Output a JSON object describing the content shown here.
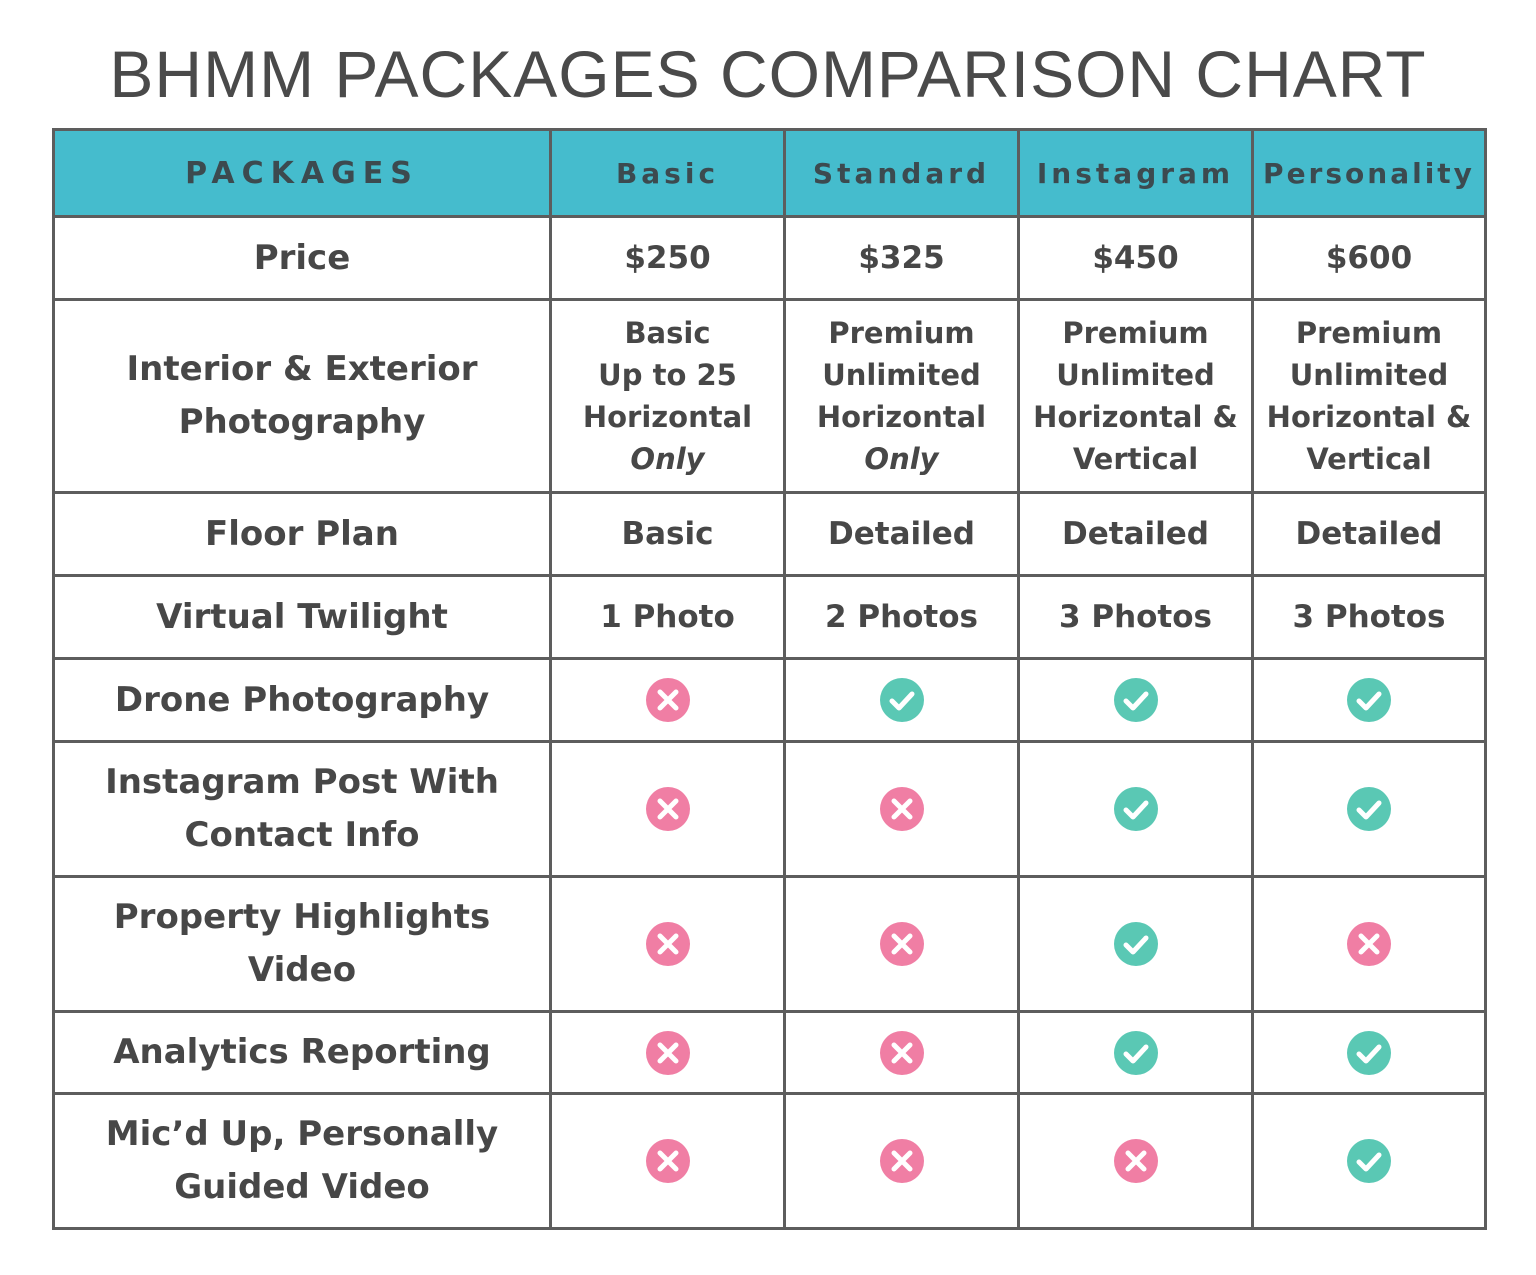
{
  "title": "BHMM PACKAGES COMPARISON CHART",
  "header": {
    "first": "PACKAGES",
    "packages": [
      "Basic",
      "Standard",
      "Instagram",
      "Personality"
    ]
  },
  "rows": {
    "price": {
      "label": "Price",
      "values": [
        "$250",
        "$325",
        "$450",
        "$600"
      ]
    },
    "photography": {
      "label_lines": [
        "Interior & Exterior",
        "Photography"
      ],
      "values": [
        [
          "Basic",
          "Up to 25",
          "Horizontal",
          "Only"
        ],
        [
          "Premium",
          "Unlimited",
          "Horizontal",
          "Only"
        ],
        [
          "Premium",
          "Unlimited",
          "Horizontal &",
          "Vertical"
        ],
        [
          "Premium",
          "Unlimited",
          "Horizontal &",
          "Vertical"
        ]
      ]
    },
    "floor_plan": {
      "label": "Floor Plan",
      "values": [
        "Basic",
        "Detailed",
        "Detailed",
        "Detailed"
      ]
    },
    "virtual_twilight": {
      "label": "Virtual Twilight",
      "values": [
        "1 Photo",
        "2 Photos",
        "3 Photos",
        "3 Photos"
      ]
    },
    "drone": {
      "label_lines": [
        "Drone Photography"
      ],
      "icons": [
        "x-icon",
        "check-icon",
        "check-icon",
        "check-icon"
      ]
    },
    "instagram_post": {
      "label_lines": [
        "Instagram Post With",
        "Contact Info"
      ],
      "icons": [
        "x-icon",
        "x-icon",
        "check-icon",
        "check-icon"
      ]
    },
    "highlights_video": {
      "label_lines": [
        "Property Highlights",
        "Video"
      ],
      "icons": [
        "x-icon",
        "x-icon",
        "check-icon",
        "x-icon"
      ]
    },
    "analytics": {
      "label_lines": [
        "Analytics Reporting"
      ],
      "icons": [
        "x-icon",
        "x-icon",
        "check-icon",
        "check-icon"
      ]
    },
    "micd_up": {
      "label_lines": [
        "Mic’d Up, Personally",
        "Guided Video"
      ],
      "icons": [
        "x-icon",
        "x-icon",
        "x-icon",
        "check-icon"
      ]
    }
  },
  "colors": {
    "header_bg": "#45bccd",
    "check": "#5ac8b4",
    "x": "#f07ea4",
    "border": "#5d5d5d",
    "text": "#474747"
  }
}
